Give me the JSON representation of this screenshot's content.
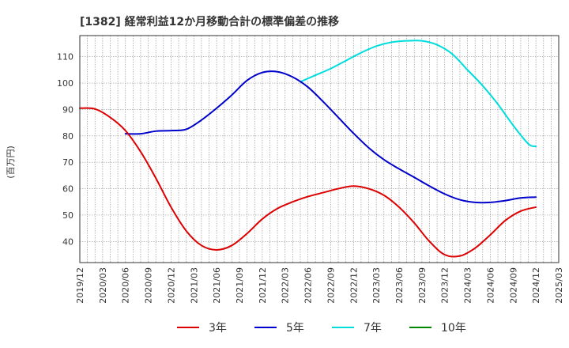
{
  "chart_data": {
    "type": "line",
    "title": "[1382]  経常利益12か月移動合計の標準偏差の推移",
    "ylabel": "(百万円)",
    "xlabel": "",
    "ylim": [
      32,
      118
    ],
    "yticks": [
      40,
      50,
      60,
      70,
      80,
      90,
      100,
      110
    ],
    "xticks": [
      "2019/12",
      "2020/03",
      "2020/06",
      "2020/09",
      "2020/12",
      "2021/03",
      "2021/06",
      "2021/09",
      "2021/12",
      "2022/03",
      "2022/06",
      "2022/09",
      "2022/12",
      "2023/03",
      "2023/06",
      "2023/09",
      "2023/12",
      "2024/03",
      "2024/06",
      "2024/09",
      "2024/12",
      "2025/03"
    ],
    "grid": true,
    "legend_position": "bottom",
    "series": [
      {
        "name": "3年",
        "color": "#dd0000",
        "points": [
          [
            "2019/12",
            90.5
          ],
          [
            "2020/02",
            90.2
          ],
          [
            "2020/04",
            87.0
          ],
          [
            "2020/06",
            82.0
          ],
          [
            "2020/08",
            74.0
          ],
          [
            "2020/10",
            64.0
          ],
          [
            "2020/12",
            53.0
          ],
          [
            "2021/02",
            44.0
          ],
          [
            "2021/04",
            38.5
          ],
          [
            "2021/06",
            36.8
          ],
          [
            "2021/08",
            38.5
          ],
          [
            "2021/10",
            43.0
          ],
          [
            "2021/12",
            48.5
          ],
          [
            "2022/02",
            52.5
          ],
          [
            "2022/04",
            55.0
          ],
          [
            "2022/06",
            57.0
          ],
          [
            "2022/08",
            58.5
          ],
          [
            "2022/10",
            60.0
          ],
          [
            "2022/12",
            61.0
          ],
          [
            "2023/02",
            60.0
          ],
          [
            "2023/04",
            57.5
          ],
          [
            "2023/06",
            53.0
          ],
          [
            "2023/08",
            47.0
          ],
          [
            "2023/10",
            40.0
          ],
          [
            "2023/12",
            35.0
          ],
          [
            "2024/02",
            34.5
          ],
          [
            "2024/04",
            37.5
          ],
          [
            "2024/06",
            42.5
          ],
          [
            "2024/08",
            48.0
          ],
          [
            "2024/10",
            51.5
          ],
          [
            "2024/12",
            53.0
          ]
        ]
      },
      {
        "name": "5年",
        "color": "#0000cc",
        "points": [
          [
            "2020/06",
            80.8
          ],
          [
            "2020/08",
            80.8
          ],
          [
            "2020/10",
            81.8
          ],
          [
            "2020/12",
            82.0
          ],
          [
            "2021/02",
            82.5
          ],
          [
            "2021/04",
            86.0
          ],
          [
            "2021/06",
            90.5
          ],
          [
            "2021/08",
            95.5
          ],
          [
            "2021/10",
            101.0
          ],
          [
            "2021/12",
            104.0
          ],
          [
            "2022/02",
            104.3
          ],
          [
            "2022/04",
            102.3
          ],
          [
            "2022/06",
            98.5
          ],
          [
            "2022/08",
            93.0
          ],
          [
            "2022/10",
            87.0
          ],
          [
            "2022/12",
            81.0
          ],
          [
            "2023/02",
            75.5
          ],
          [
            "2023/04",
            71.0
          ],
          [
            "2023/06",
            67.5
          ],
          [
            "2023/08",
            64.3
          ],
          [
            "2023/10",
            61.0
          ],
          [
            "2023/12",
            58.0
          ],
          [
            "2024/02",
            55.8
          ],
          [
            "2024/04",
            54.8
          ],
          [
            "2024/06",
            54.8
          ],
          [
            "2024/08",
            55.5
          ],
          [
            "2024/10",
            56.5
          ],
          [
            "2024/12",
            56.8
          ]
        ]
      },
      {
        "name": "7年",
        "color": "#00dddd",
        "points": [
          [
            "2022/05",
            100.5
          ],
          [
            "2022/07",
            103.0
          ],
          [
            "2022/09",
            105.5
          ],
          [
            "2022/11",
            108.5
          ],
          [
            "2023/01",
            111.5
          ],
          [
            "2023/03",
            114.0
          ],
          [
            "2023/05",
            115.5
          ],
          [
            "2023/07",
            116.0
          ],
          [
            "2023/09",
            116.0
          ],
          [
            "2023/11",
            114.5
          ],
          [
            "2024/01",
            111.0
          ],
          [
            "2024/03",
            105.0
          ],
          [
            "2024/05",
            99.0
          ],
          [
            "2024/07",
            92.0
          ],
          [
            "2024/09",
            84.0
          ],
          [
            "2024/11",
            77.0
          ],
          [
            "2024/12",
            76.0
          ]
        ]
      },
      {
        "name": "10年",
        "color": "#008800",
        "points": []
      }
    ]
  }
}
